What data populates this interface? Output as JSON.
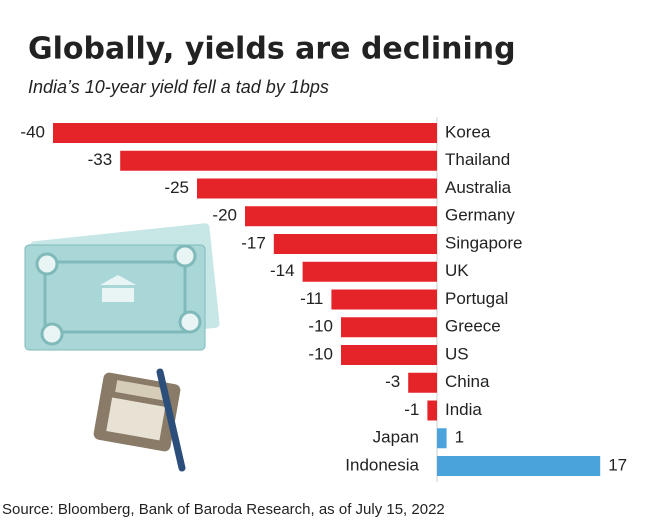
{
  "chart_data": {
    "type": "bar",
    "orientation": "horizontal",
    "title": "Globally, yields are declining",
    "subtitle": "India’s 10-year yield fell a tad by 1bps",
    "source": "Source: Bloomberg, Bank of Baroda Research, as of July 15, 2022",
    "categories": [
      "Korea",
      "Thailand",
      "Australia",
      "Germany",
      "Singapore",
      "UK",
      "Portugal",
      "Greece",
      "US",
      "China",
      "India",
      "Japan",
      "Indonesia"
    ],
    "values": [
      -40,
      -33,
      -25,
      -20,
      -17,
      -14,
      -11,
      -10,
      -10,
      -3,
      -1,
      1,
      17
    ],
    "negative_color": "#e5242a",
    "positive_color": "#4ba3db"
  }
}
